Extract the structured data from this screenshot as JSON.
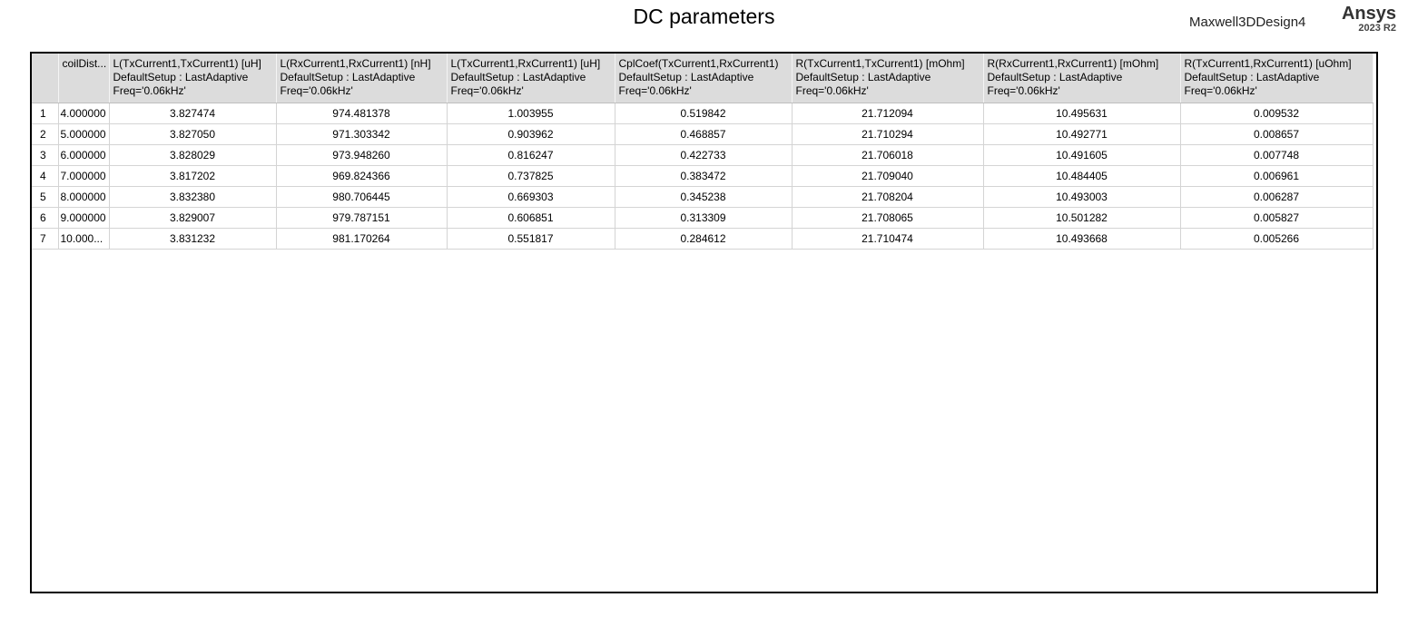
{
  "report": {
    "title": "DC parameters",
    "design_name": "Maxwell3DDesign4",
    "brand": "Ansys",
    "version": "2023 R2"
  },
  "table": {
    "columns": [
      {
        "line1": "coilDist...",
        "line2": "",
        "line3": ""
      },
      {
        "line1": "L(TxCurrent1,TxCurrent1) [uH]",
        "line2": "DefaultSetup : LastAdaptive",
        "line3": "Freq='0.06kHz'"
      },
      {
        "line1": "L(RxCurrent1,RxCurrent1) [nH]",
        "line2": "DefaultSetup : LastAdaptive",
        "line3": "Freq='0.06kHz'"
      },
      {
        "line1": "L(TxCurrent1,RxCurrent1) [uH]",
        "line2": "DefaultSetup : LastAdaptive",
        "line3": "Freq='0.06kHz'"
      },
      {
        "line1": "CplCoef(TxCurrent1,RxCurrent1)",
        "line2": "DefaultSetup : LastAdaptive",
        "line3": "Freq='0.06kHz'"
      },
      {
        "line1": "R(TxCurrent1,TxCurrent1) [mOhm]",
        "line2": "DefaultSetup : LastAdaptive",
        "line3": "Freq='0.06kHz'"
      },
      {
        "line1": "R(RxCurrent1,RxCurrent1) [mOhm]",
        "line2": "DefaultSetup : LastAdaptive",
        "line3": "Freq='0.06kHz'"
      },
      {
        "line1": "R(TxCurrent1,RxCurrent1) [uOhm]",
        "line2": "DefaultSetup : LastAdaptive",
        "line3": "Freq='0.06kHz'"
      }
    ],
    "rows": [
      {
        "index": "1",
        "cells": [
          "4.000000",
          "3.827474",
          "974.481378",
          "1.003955",
          "0.519842",
          "21.712094",
          "10.495631",
          "0.009532"
        ]
      },
      {
        "index": "2",
        "cells": [
          "5.000000",
          "3.827050",
          "971.303342",
          "0.903962",
          "0.468857",
          "21.710294",
          "10.492771",
          "0.008657"
        ]
      },
      {
        "index": "3",
        "cells": [
          "6.000000",
          "3.828029",
          "973.948260",
          "0.816247",
          "0.422733",
          "21.706018",
          "10.491605",
          "0.007748"
        ]
      },
      {
        "index": "4",
        "cells": [
          "7.000000",
          "3.817202",
          "969.824366",
          "0.737825",
          "0.383472",
          "21.709040",
          "10.484405",
          "0.006961"
        ]
      },
      {
        "index": "5",
        "cells": [
          "8.000000",
          "3.832380",
          "980.706445",
          "0.669303",
          "0.345238",
          "21.708204",
          "10.493003",
          "0.006287"
        ]
      },
      {
        "index": "6",
        "cells": [
          "9.000000",
          "3.829007",
          "979.787151",
          "0.606851",
          "0.313309",
          "21.708065",
          "10.501282",
          "0.005827"
        ]
      },
      {
        "index": "7",
        "cells": [
          "10.000...",
          "3.831232",
          "981.170264",
          "0.551817",
          "0.284612",
          "21.710474",
          "10.493668",
          "0.005266"
        ]
      }
    ]
  }
}
